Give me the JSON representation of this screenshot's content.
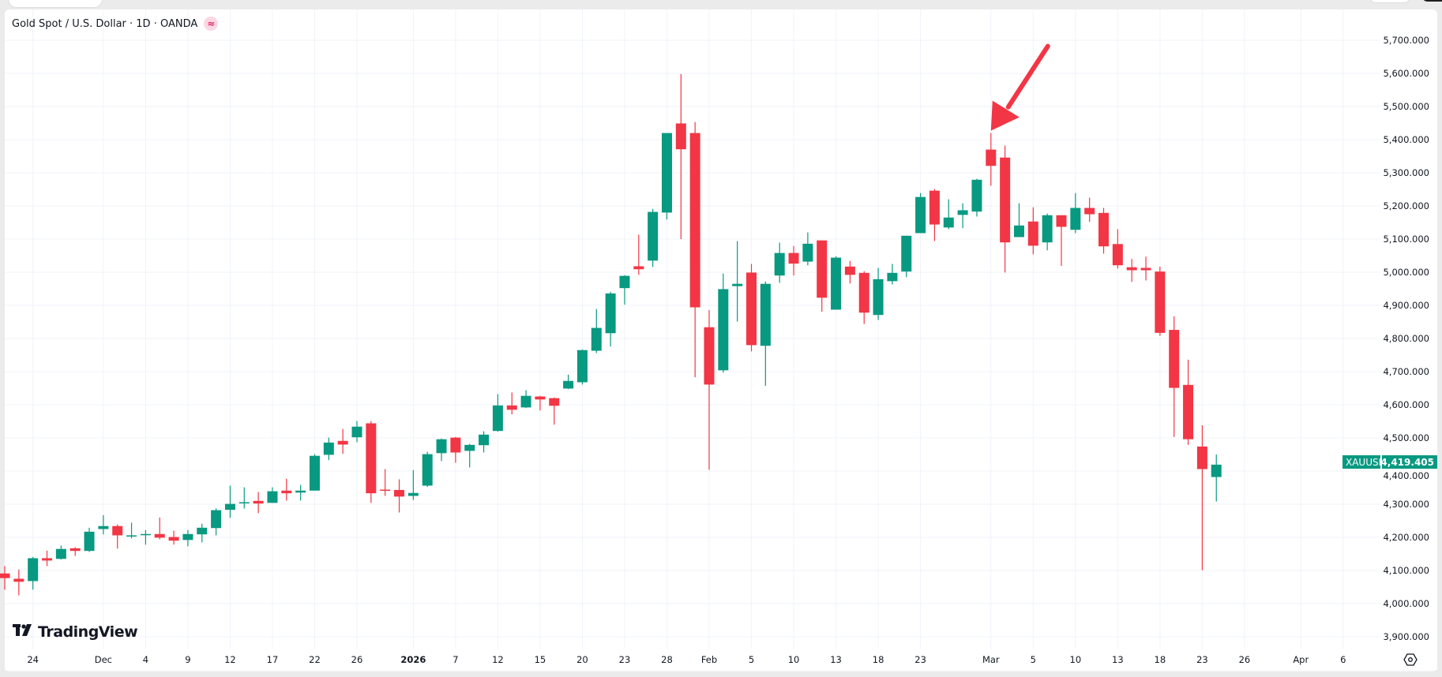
{
  "header": {
    "symbol_title": "Gold Spot / U.S. Dollar · 1D · OANDA",
    "badge_icon": "≈"
  },
  "branding": {
    "logo_text": "TradingView",
    "logo_mark": "TV"
  },
  "price_tag": {
    "symbol": "XAUUSD",
    "value": "4,419.405"
  },
  "colors": {
    "up": "#089981",
    "down": "#f23645",
    "grid": "#f0f3fa",
    "annotation": "#f23645"
  },
  "chart_data": {
    "type": "candlestick",
    "title": "Gold Spot / U.S. Dollar · 1D · OANDA",
    "ylim": [
      3850,
      5780
    ],
    "grid": true,
    "y_ticks": [
      "5,700.000",
      "5,600.000",
      "5,500.000",
      "5,400.000",
      "5,300.000",
      "5,200.000",
      "5,100.000",
      "5,000.000",
      "4,900.000",
      "4,800.000",
      "4,700.000",
      "4,600.000",
      "4,500.000",
      "4,400.000",
      "4,300.000",
      "4,200.000",
      "4,100.000",
      "4,000.000",
      "3,900.000"
    ],
    "y_tick_values": [
      5700,
      5600,
      5500,
      5400,
      5300,
      5200,
      5100,
      5000,
      4900,
      4800,
      4700,
      4600,
      4500,
      4400,
      4300,
      4200,
      4100,
      4000,
      3900
    ],
    "x_ticks": [
      {
        "label": "24",
        "date": "2025-11-24"
      },
      {
        "label": "Dec",
        "date": "2025-12-01"
      },
      {
        "label": "4",
        "date": "2025-12-04"
      },
      {
        "label": "9",
        "date": "2025-12-09"
      },
      {
        "label": "12",
        "date": "2025-12-12"
      },
      {
        "label": "17",
        "date": "2025-12-17"
      },
      {
        "label": "22",
        "date": "2025-12-22"
      },
      {
        "label": "26",
        "date": "2025-12-26"
      },
      {
        "label": "2026",
        "date": "2026-01-02"
      },
      {
        "label": "7",
        "date": "2026-01-07"
      },
      {
        "label": "12",
        "date": "2026-01-12"
      },
      {
        "label": "15",
        "date": "2026-01-15"
      },
      {
        "label": "20",
        "date": "2026-01-20"
      },
      {
        "label": "23",
        "date": "2026-01-23"
      },
      {
        "label": "28",
        "date": "2026-01-28"
      },
      {
        "label": "Feb",
        "date": "2026-02-02"
      },
      {
        "label": "5",
        "date": "2026-02-05"
      },
      {
        "label": "10",
        "date": "2026-02-10"
      },
      {
        "label": "13",
        "date": "2026-02-13"
      },
      {
        "label": "18",
        "date": "2026-02-18"
      },
      {
        "label": "23",
        "date": "2026-02-23"
      },
      {
        "label": "Mar",
        "date": "2026-03-02"
      },
      {
        "label": "5",
        "date": "2026-03-05"
      },
      {
        "label": "10",
        "date": "2026-03-10"
      },
      {
        "label": "13",
        "date": "2026-03-13"
      },
      {
        "label": "18",
        "date": "2026-03-18"
      },
      {
        "label": "23",
        "date": "2026-03-23"
      },
      {
        "label": "26",
        "date": "2026-03-26"
      },
      {
        "label": "Apr",
        "date": "2026-04-01"
      },
      {
        "label": "6",
        "date": "2026-04-06"
      }
    ],
    "candles_fields": [
      "date",
      "open",
      "high",
      "low",
      "close"
    ],
    "candles": [
      [
        "2025-11-20",
        4091,
        4113,
        4042,
        4077
      ],
      [
        "2025-11-21",
        4075,
        4103,
        4025,
        4066
      ],
      [
        "2025-11-24",
        4068,
        4141,
        4042,
        4137
      ],
      [
        "2025-11-25",
        4137,
        4160,
        4113,
        4130
      ],
      [
        "2025-11-26",
        4135,
        4175,
        4133,
        4165
      ],
      [
        "2025-11-27",
        4167,
        4170,
        4144,
        4159
      ],
      [
        "2025-11-28",
        4159,
        4229,
        4156,
        4217
      ],
      [
        "2025-12-01",
        4225,
        4267,
        4209,
        4234
      ],
      [
        "2025-12-02",
        4234,
        4239,
        4166,
        4206
      ],
      [
        "2025-12-03",
        4204,
        4244,
        4197,
        4206
      ],
      [
        "2025-12-04",
        4208,
        4222,
        4178,
        4210
      ],
      [
        "2025-12-05",
        4210,
        4260,
        4194,
        4199
      ],
      [
        "2025-12-08",
        4201,
        4220,
        4178,
        4190
      ],
      [
        "2025-12-09",
        4192,
        4222,
        4173,
        4210
      ],
      [
        "2025-12-10",
        4209,
        4241,
        4185,
        4229
      ],
      [
        "2025-12-11",
        4228,
        4287,
        4206,
        4282
      ],
      [
        "2025-12-12",
        4283,
        4356,
        4259,
        4301
      ],
      [
        "2025-12-15",
        4304,
        4351,
        4287,
        4306
      ],
      [
        "2025-12-16",
        4310,
        4337,
        4273,
        4302
      ],
      [
        "2025-12-17",
        4304,
        4351,
        4304,
        4339
      ],
      [
        "2025-12-18",
        4341,
        4377,
        4311,
        4333
      ],
      [
        "2025-12-19",
        4335,
        4358,
        4311,
        4341
      ],
      [
        "2025-12-22",
        4341,
        4451,
        4341,
        4446
      ],
      [
        "2025-12-23",
        4449,
        4501,
        4433,
        4486
      ],
      [
        "2025-12-24",
        4491,
        4527,
        4452,
        4480
      ],
      [
        "2025-12-26",
        4502,
        4551,
        4487,
        4534
      ],
      [
        "2025-12-29",
        4544,
        4551,
        4304,
        4333
      ],
      [
        "2025-12-30",
        4344,
        4406,
        4325,
        4342
      ],
      [
        "2025-12-31",
        4343,
        4375,
        4275,
        4323
      ],
      [
        "2026-01-02",
        4325,
        4403,
        4313,
        4334
      ],
      [
        "2026-01-05",
        4356,
        4458,
        4352,
        4451
      ],
      [
        "2026-01-06",
        4454,
        4498,
        4430,
        4496
      ],
      [
        "2026-01-07",
        4501,
        4503,
        4425,
        4456
      ],
      [
        "2026-01-08",
        4461,
        4482,
        4411,
        4479
      ],
      [
        "2026-01-09",
        4478,
        4520,
        4456,
        4510
      ],
      [
        "2026-01-12",
        4521,
        4632,
        4519,
        4598
      ],
      [
        "2026-01-13",
        4598,
        4637,
        4571,
        4585
      ],
      [
        "2026-01-14",
        4592,
        4644,
        4590,
        4627
      ],
      [
        "2026-01-15",
        4625,
        4627,
        4583,
        4616
      ],
      [
        "2026-01-16",
        4620,
        4622,
        4540,
        4597
      ],
      [
        "2026-01-19",
        4649,
        4691,
        4647,
        4672
      ],
      [
        "2026-01-20",
        4668,
        4767,
        4661,
        4765
      ],
      [
        "2026-01-21",
        4763,
        4889,
        4756,
        4832
      ],
      [
        "2026-01-22",
        4816,
        4941,
        4776,
        4936
      ],
      [
        "2026-01-23",
        4952,
        4991,
        4902,
        4989
      ],
      [
        "2026-01-26",
        5018,
        5113,
        4992,
        5009
      ],
      [
        "2026-01-27",
        5035,
        5191,
        5016,
        5182
      ],
      [
        "2026-01-28",
        5180,
        5420,
        5159,
        5420
      ],
      [
        "2026-01-29",
        5449,
        5598,
        5100,
        5371
      ],
      [
        "2026-01-30",
        5420,
        5453,
        4683,
        4894
      ],
      [
        "2026-02-02",
        4834,
        4886,
        4404,
        4661
      ],
      [
        "2026-02-03",
        4704,
        4996,
        4697,
        4949
      ],
      [
        "2026-02-04",
        4958,
        5094,
        4851,
        4965
      ],
      [
        "2026-02-05",
        4999,
        5025,
        4761,
        4780
      ],
      [
        "2026-02-06",
        4778,
        4972,
        4657,
        4965
      ],
      [
        "2026-02-09",
        4990,
        5089,
        4968,
        5058
      ],
      [
        "2026-02-10",
        5058,
        5079,
        4990,
        5026
      ],
      [
        "2026-02-11",
        5032,
        5120,
        5021,
        5086
      ],
      [
        "2026-02-12",
        5096,
        5096,
        4881,
        4923
      ],
      [
        "2026-02-13",
        4887,
        5048,
        4887,
        5044
      ],
      [
        "2026-02-16",
        5017,
        5034,
        4966,
        4992
      ],
      [
        "2026-02-17",
        4998,
        5003,
        4844,
        4878
      ],
      [
        "2026-02-18",
        4871,
        5013,
        4856,
        4979
      ],
      [
        "2026-02-19",
        4973,
        5025,
        4963,
        4998
      ],
      [
        "2026-02-20",
        5002,
        5110,
        4985,
        5110
      ],
      [
        "2026-02-23",
        5118,
        5239,
        5118,
        5227
      ],
      [
        "2026-02-24",
        5246,
        5251,
        5094,
        5144
      ],
      [
        "2026-02-25",
        5135,
        5220,
        5130,
        5165
      ],
      [
        "2026-02-26",
        5173,
        5208,
        5133,
        5187
      ],
      [
        "2026-02-27",
        5183,
        5282,
        5168,
        5279
      ],
      [
        "2026-03-02",
        5370,
        5420,
        5261,
        5321
      ],
      [
        "2026-03-03",
        5346,
        5382,
        4999,
        5090
      ],
      [
        "2026-03-04",
        5106,
        5208,
        5106,
        5141
      ],
      [
        "2026-03-05",
        5153,
        5196,
        5054,
        5080
      ],
      [
        "2026-03-06",
        5090,
        5177,
        5066,
        5172
      ],
      [
        "2026-03-09",
        5172,
        5172,
        5019,
        5137
      ],
      [
        "2026-03-10",
        5128,
        5239,
        5118,
        5194
      ],
      [
        "2026-03-11",
        5194,
        5225,
        5152,
        5175
      ],
      [
        "2026-03-12",
        5179,
        5194,
        5056,
        5078
      ],
      [
        "2026-03-13",
        5085,
        5130,
        5011,
        5021
      ],
      [
        "2026-03-16",
        5015,
        5040,
        4971,
        5006
      ],
      [
        "2026-03-17",
        5013,
        5047,
        4975,
        5006
      ],
      [
        "2026-03-18",
        5002,
        5017,
        4808,
        4817
      ],
      [
        "2026-03-19",
        4826,
        4867,
        4503,
        4651
      ],
      [
        "2026-03-20",
        4660,
        4736,
        4479,
        4496
      ],
      [
        "2026-03-23",
        4474,
        4538,
        4101,
        4406
      ],
      [
        "2026-03-24",
        4382,
        4450,
        4308,
        4419.405
      ]
    ],
    "annotations": [
      {
        "type": "arrow",
        "points_to_date": "2026-03-02",
        "color": "#f23645"
      }
    ]
  }
}
